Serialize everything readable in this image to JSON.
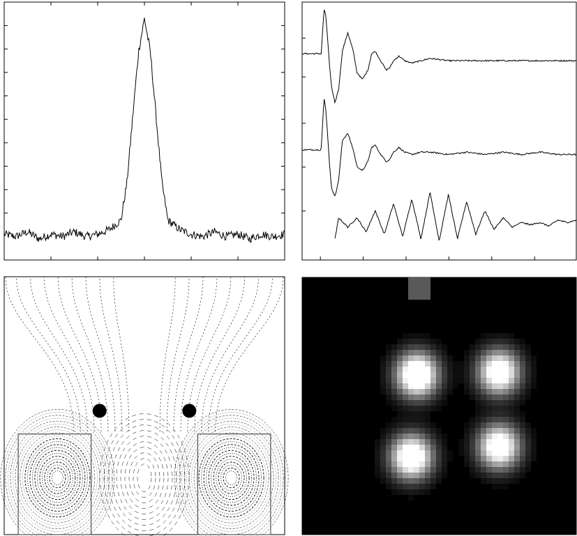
{
  "chart_data": [
    {
      "type": "line",
      "x": [
        -6,
        -5.5,
        -5,
        -4.5,
        -4,
        -3.5,
        -3,
        -2.5,
        -2,
        -1.5,
        -1,
        -0.75,
        -0.5,
        -0.25,
        0,
        0.25,
        0.5,
        0.75,
        1,
        1.5,
        2,
        2.5,
        3,
        3.5,
        4,
        4.5,
        5,
        5.5,
        6
      ],
      "y": [
        0.06,
        0.05,
        0.07,
        0.04,
        0.06,
        0.05,
        0.07,
        0.05,
        0.06,
        0.08,
        0.12,
        0.28,
        0.56,
        0.84,
        0.98,
        0.84,
        0.56,
        0.28,
        0.12,
        0.08,
        0.06,
        0.05,
        0.07,
        0.05,
        0.06,
        0.04,
        0.06,
        0.05,
        0.06
      ],
      "xlim": [
        -6,
        6
      ],
      "ylim": [
        -0.05,
        1.05
      ],
      "grid": false
    },
    {
      "type": "line",
      "xlim": [
        -1,
        14
      ],
      "ylim": [
        -0.5,
        10.5
      ],
      "grid": false,
      "series": [
        {
          "x": [
            -1,
            0,
            0.05,
            0.1,
            0.2,
            0.3,
            0.4,
            0.5,
            0.6,
            0.8,
            1.0,
            1.2,
            1.5,
            1.8,
            2.0,
            2.3,
            2.6,
            2.8,
            3.0,
            3.3,
            3.6,
            3.8,
            4.0,
            4.3,
            4.6,
            5.0,
            5.5,
            6,
            7,
            8,
            9,
            10,
            11,
            12,
            13,
            14
          ],
          "y": [
            8.3,
            8.3,
            8.3,
            9.0,
            10.2,
            9.9,
            8.9,
            7.8,
            6.9,
            6.2,
            6.8,
            8.4,
            9.2,
            8.4,
            7.5,
            7.2,
            7.6,
            8.3,
            8.4,
            8.0,
            7.6,
            7.7,
            8.0,
            8.2,
            8.0,
            7.9,
            8.0,
            8.1,
            8.0,
            8.0,
            8.0,
            8.0,
            8.0,
            8.0,
            8.0,
            8.0
          ]
        },
        {
          "x": [
            -1,
            0,
            0.05,
            0.1,
            0.2,
            0.3,
            0.4,
            0.5,
            0.6,
            0.8,
            1.0,
            1.2,
            1.5,
            1.8,
            2.0,
            2.3,
            2.6,
            2.8,
            3.0,
            3.3,
            3.6,
            3.8,
            4.0,
            4.3,
            4.6,
            5.0,
            5.5,
            6,
            7,
            8,
            9,
            10,
            11,
            12,
            13,
            14
          ],
          "y": [
            4.2,
            4.2,
            4.3,
            5.0,
            6.4,
            5.9,
            4.8,
            3.6,
            2.6,
            2.2,
            2.9,
            4.6,
            4.9,
            4.2,
            3.5,
            3.3,
            3.7,
            4.3,
            4.4,
            4.0,
            3.7,
            3.8,
            4.1,
            4.3,
            4.1,
            4.0,
            4.1,
            4.1,
            4.0,
            4.1,
            4.0,
            4.1,
            4.0,
            4.1,
            4.0,
            4.0
          ]
        },
        {
          "x": [
            0.8,
            1.0,
            1.5,
            2.0,
            2.5,
            3.0,
            3.5,
            4.0,
            4.5,
            5.0,
            5.5,
            6.0,
            6.5,
            7.0,
            7.5,
            8.0,
            8.5,
            9.0,
            9.5,
            10.0,
            10.5,
            11.0,
            11.5,
            12.0,
            12.5,
            13.0,
            13.5,
            14.0
          ],
          "y": [
            0.4,
            1.3,
            0.9,
            1.3,
            0.7,
            1.6,
            0.6,
            1.9,
            0.5,
            2.1,
            0.4,
            2.4,
            0.3,
            2.3,
            0.4,
            2.0,
            0.6,
            1.6,
            0.8,
            1.3,
            0.9,
            1.1,
            1.0,
            1.1,
            0.95,
            1.2,
            1.1,
            1.2
          ]
        }
      ]
    },
    {
      "type": "contour",
      "grid": false,
      "sources": [
        {
          "x": -0.32,
          "y": 0.52
        },
        {
          "x": 0.32,
          "y": 0.52
        }
      ]
    },
    {
      "type": "heatmap",
      "grid": false,
      "blobs": [
        {
          "x": 0.42,
          "y": 0.38,
          "intensity": 1.0
        },
        {
          "x": 0.72,
          "y": 0.37,
          "intensity": 0.9
        },
        {
          "x": 0.4,
          "y": 0.7,
          "intensity": 0.95
        },
        {
          "x": 0.72,
          "y": 0.66,
          "intensity": 0.9
        }
      ]
    }
  ]
}
